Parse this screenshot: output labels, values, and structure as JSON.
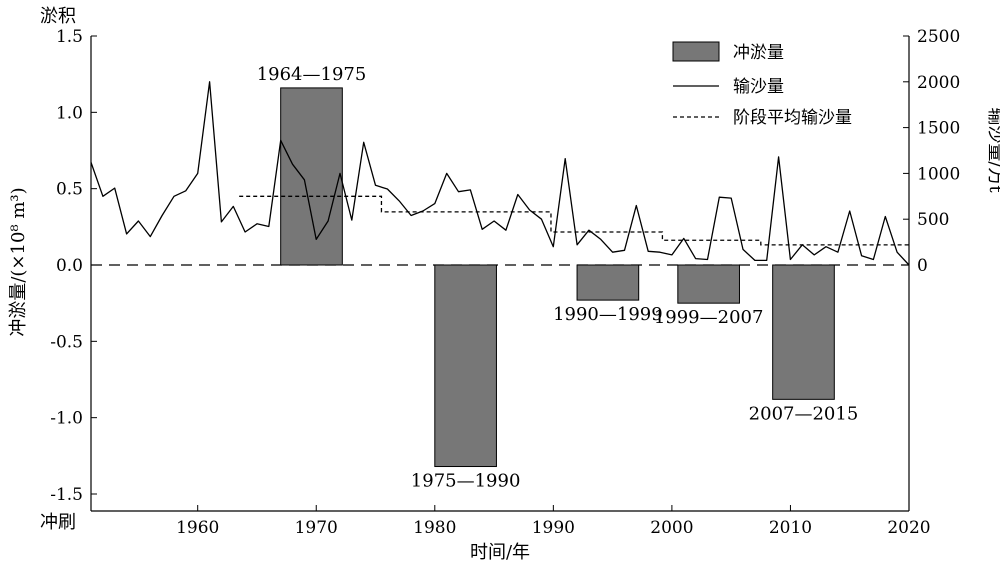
{
  "chart_data": {
    "type": "bar+line",
    "title": "",
    "xlabel": "时间/年",
    "ylabel_left": "冲淤量/(×10⁸ m³)",
    "ylabel_right": "输沙量/万t",
    "top_left_label": "淤积",
    "bottom_left_label": "冲刷",
    "xlim": [
      1951,
      2020
    ],
    "x_ticks": [
      "1960",
      "1970",
      "1980",
      "1990",
      "2000",
      "2010",
      "2020"
    ],
    "ylim_left": [
      -1.6,
      1.5
    ],
    "y_ticks_left": [
      "1.5",
      "1.0",
      "0.5",
      "0.0",
      "-0.5",
      "-1.0",
      "-1.5"
    ],
    "ylim_right": [
      0,
      2500
    ],
    "y_ticks_right": [
      "2500",
      "2000",
      "1500",
      "1000",
      "500",
      "0"
    ],
    "legend_position": "top-right",
    "legend": [
      "冲淤量",
      "输沙量",
      "阶段平均输沙量"
    ],
    "bars": [
      {
        "period": "1964—1975",
        "x_start": 1967,
        "x_end": 1972.2,
        "value": 1.16
      },
      {
        "period": "1975—1990",
        "x_start": 1980,
        "x_end": 1985.2,
        "value": -1.32
      },
      {
        "period": "1990—1999",
        "x_start": 1992,
        "x_end": 1997.2,
        "value": -0.23
      },
      {
        "period": "1999—2007",
        "x_start": 2000.5,
        "x_end": 2005.7,
        "value": -0.25
      },
      {
        "period": "2007—2015",
        "x_start": 2008.5,
        "x_end": 2013.7,
        "value": -0.88
      }
    ],
    "series": [
      {
        "name": "输沙量",
        "x": [
          1951,
          1952,
          1953,
          1954,
          1955,
          1956,
          1957,
          1958,
          1959,
          1960,
          1961,
          1962,
          1963,
          1964,
          1965,
          1966,
          1967,
          1968,
          1969,
          1970,
          1971,
          1972,
          1973,
          1974,
          1975,
          1976,
          1977,
          1978,
          1979,
          1980,
          1981,
          1982,
          1983,
          1984,
          1985,
          1986,
          1987,
          1988,
          1989,
          1990,
          1991,
          1992,
          1993,
          1994,
          1995,
          1996,
          1997,
          1998,
          1999,
          2000,
          2001,
          2002,
          2003,
          2004,
          2005,
          2006,
          2007,
          2008,
          2009,
          2010,
          2011,
          2012,
          2013,
          2014,
          2015,
          2016,
          2017,
          2018,
          2019,
          2020
        ],
        "y": [
          1120,
          750,
          840,
          340,
          480,
          310,
          540,
          750,
          810,
          1000,
          2000,
          470,
          640,
          360,
          450,
          420,
          1360,
          1100,
          930,
          280,
          480,
          1000,
          490,
          1340,
          870,
          830,
          700,
          540,
          590,
          670,
          1000,
          800,
          820,
          390,
          480,
          380,
          770,
          600,
          500,
          200,
          1160,
          220,
          380,
          280,
          140,
          160,
          650,
          150,
          140,
          110,
          290,
          70,
          60,
          740,
          730,
          170,
          50,
          50,
          1180,
          60,
          220,
          110,
          200,
          140,
          590,
          100,
          60,
          530,
          140,
          0
        ]
      },
      {
        "name": "阶段平均输沙量",
        "segments": [
          {
            "x_start": 1963.5,
            "x_end": 1975.5,
            "y": 750
          },
          {
            "x_start": 1975.5,
            "x_end": 1989.8,
            "y": 580
          },
          {
            "x_start": 1989.8,
            "x_end": 1999.2,
            "y": 360
          },
          {
            "x_start": 1999.2,
            "x_end": 2007.5,
            "y": 270
          },
          {
            "x_start": 2007.5,
            "x_end": 2020,
            "y": 220
          }
        ]
      }
    ]
  }
}
